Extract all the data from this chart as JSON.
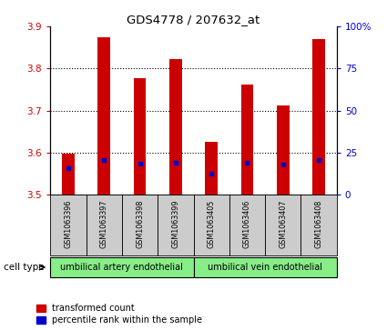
{
  "title": "GDS4778 / 207632_at",
  "samples": [
    "GSM1063396",
    "GSM1063397",
    "GSM1063398",
    "GSM1063399",
    "GSM1063405",
    "GSM1063406",
    "GSM1063407",
    "GSM1063408"
  ],
  "bar_tops": [
    3.597,
    3.874,
    3.778,
    3.822,
    3.625,
    3.762,
    3.713,
    3.869
  ],
  "bar_bottom": 3.5,
  "blue_marker_values": [
    3.562,
    3.583,
    3.574,
    3.577,
    3.551,
    3.575,
    3.572,
    3.582
  ],
  "ylim": [
    3.5,
    3.9
  ],
  "yticks_left": [
    3.5,
    3.6,
    3.7,
    3.8,
    3.9
  ],
  "yticks_right": [
    0,
    25,
    50,
    75,
    100
  ],
  "bar_color": "#cc0000",
  "blue_color": "#0000cc",
  "cell_types": [
    "umbilical artery endothelial",
    "umbilical vein endothelial"
  ],
  "cell_bg_color": "#88ee88",
  "xticklabel_bg": "#cccccc",
  "left_tick_color": "#cc0000",
  "right_tick_color": "#0000cc",
  "legend_red_label": "transformed count",
  "legend_blue_label": "percentile rank within the sample",
  "cell_type_label": "cell type"
}
